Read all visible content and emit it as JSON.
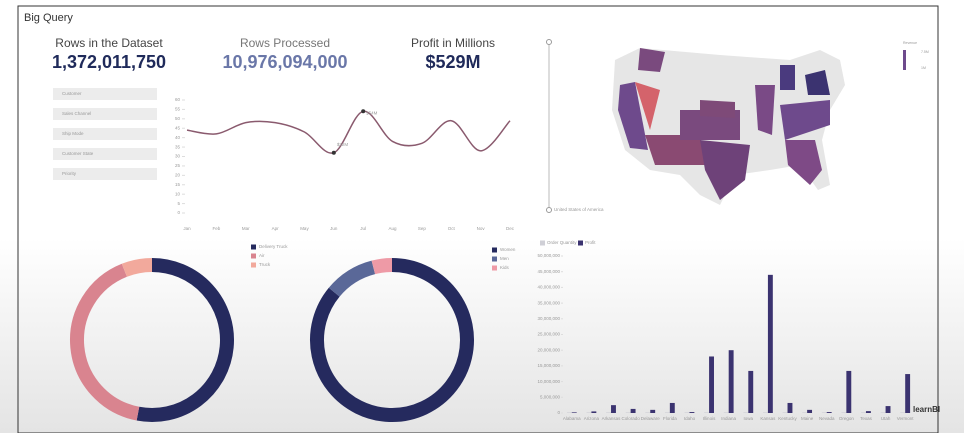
{
  "header": {
    "title": "Big Query"
  },
  "kpis": [
    {
      "label": "Rows in the Dataset",
      "value": "1,372,011,750"
    },
    {
      "label": "Rows Processed",
      "value": "10,976,094,000"
    },
    {
      "label": "Profit in Millions",
      "value": "$529M"
    }
  ],
  "filters": [
    "Customer",
    "Sales Channel",
    "Ship Mode",
    "Customer State",
    "Priority"
  ],
  "map": {
    "label": "United States of America",
    "legend_title": "Revenue",
    "legend_labels": [
      "7.5M",
      "1M"
    ]
  },
  "chart_data": [
    {
      "type": "line",
      "color": "#8a5a6e",
      "x": [
        "Jan",
        "Feb",
        "Mar",
        "Apr",
        "May",
        "Jun",
        "Jul",
        "Aug",
        "Sep",
        "Oct",
        "Nov",
        "Dec"
      ],
      "values": [
        44,
        42,
        48,
        48,
        43,
        32,
        54,
        38,
        37,
        49,
        33,
        49
      ],
      "value_labels": [
        null,
        null,
        null,
        null,
        null,
        "$32M",
        "$54M",
        null,
        null,
        null,
        null,
        null
      ],
      "ylim": [
        0,
        60
      ],
      "yticks": [
        0,
        5,
        10,
        15,
        20,
        25,
        30,
        35,
        40,
        45,
        50,
        55,
        60
      ]
    },
    {
      "type": "pie",
      "categories": [
        "Delivery Truck",
        "Air",
        "Truck"
      ],
      "values": [
        53,
        41,
        6
      ],
      "colors": [
        "#252a5e",
        "#d9848f",
        "#f2a99c"
      ]
    },
    {
      "type": "pie",
      "categories": [
        "Women",
        "Men",
        "Kids"
      ],
      "values": [
        86,
        10,
        4
      ],
      "colors": [
        "#252a5e",
        "#5a6898",
        "#ee9aa6"
      ]
    },
    {
      "type": "bar",
      "categories": [
        "Alabama",
        "Arizona",
        "Arkansas",
        "Colorado",
        "Delaware",
        "Florida",
        "Idaho",
        "Illinois",
        "Indiana",
        "Iowa",
        "Kansas",
        "Kentucky",
        "Maine",
        "Nevada",
        "Oregon",
        "Texas",
        "Utah",
        "Vermont"
      ],
      "series": [
        {
          "name": "Order Quantity",
          "color": "#cfcfd6",
          "values": [
            0.2,
            0.2,
            0.2,
            0.2,
            0.2,
            0.2,
            0.2,
            0.2,
            0.2,
            0.2,
            0.2,
            0.2,
            0.2,
            0.2,
            0.2,
            0.2,
            0.2,
            0.2
          ]
        },
        {
          "name": "Profit",
          "color": "#3b3370",
          "values": [
            0.2,
            0.5,
            2.5,
            1.3,
            1,
            3.2,
            0.3,
            18,
            20,
            13.4,
            44,
            3.2,
            1,
            0.3,
            13.4,
            0.6,
            2.2,
            12.4
          ]
        }
      ],
      "ylim": [
        0,
        50
      ],
      "yticks": [
        {
          "value": 0,
          "label": "0"
        },
        {
          "value": 5,
          "label": "5,000,000"
        },
        {
          "value": 10,
          "label": "10,000,000"
        },
        {
          "value": 15,
          "label": "15,000,000"
        },
        {
          "value": 20,
          "label": "20,000,000"
        },
        {
          "value": 25,
          "label": "25,000,000"
        },
        {
          "value": 30,
          "label": "30,000,000"
        },
        {
          "value": 35,
          "label": "35,000,000"
        },
        {
          "value": 40,
          "label": "40,000,000"
        },
        {
          "value": 45,
          "label": "45,000,000"
        },
        {
          "value": 50,
          "label": "50,000,000"
        }
      ]
    }
  ]
}
